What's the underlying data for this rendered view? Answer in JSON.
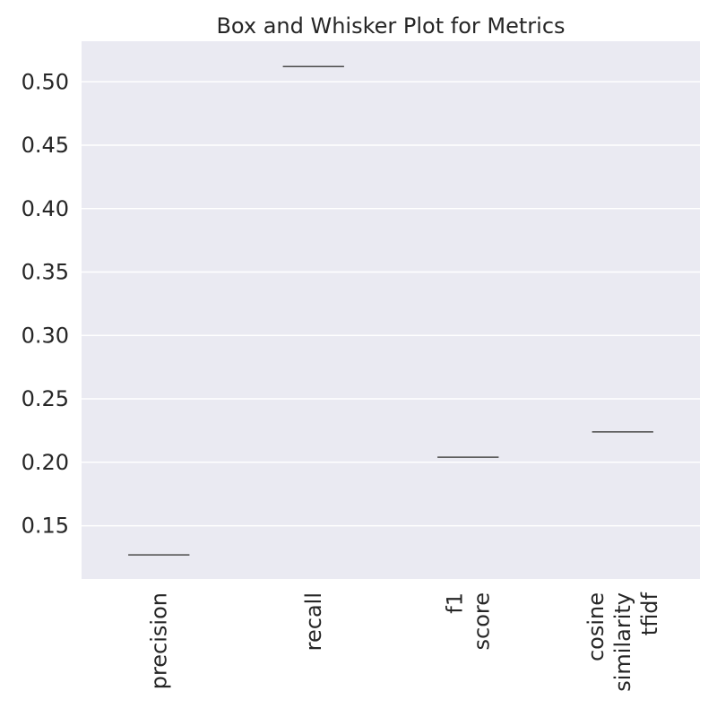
{
  "chart_data": {
    "type": "box",
    "title": "Box and Whisker Plot for Metrics",
    "xlabel": "",
    "ylabel": "",
    "categories": [
      [
        "precision"
      ],
      [
        "recall"
      ],
      [
        "f1",
        "score"
      ],
      [
        "cosine",
        "similarity",
        "tfidf"
      ]
    ],
    "values": [
      0.127,
      0.512,
      0.204,
      0.224
    ],
    "ylim": [
      0.108,
      0.532
    ],
    "yticks": [
      0.15,
      0.2,
      0.25,
      0.3,
      0.35,
      0.4,
      0.45,
      0.5
    ],
    "ytick_labels": [
      "0.15",
      "0.20",
      "0.25",
      "0.30",
      "0.35",
      "0.40",
      "0.45",
      "0.50"
    ],
    "grid": true,
    "colors": {
      "plot_background": "#eaeaf2",
      "grid": "#ffffff",
      "median_line": "#4a4a4a",
      "text": "#262626"
    }
  }
}
